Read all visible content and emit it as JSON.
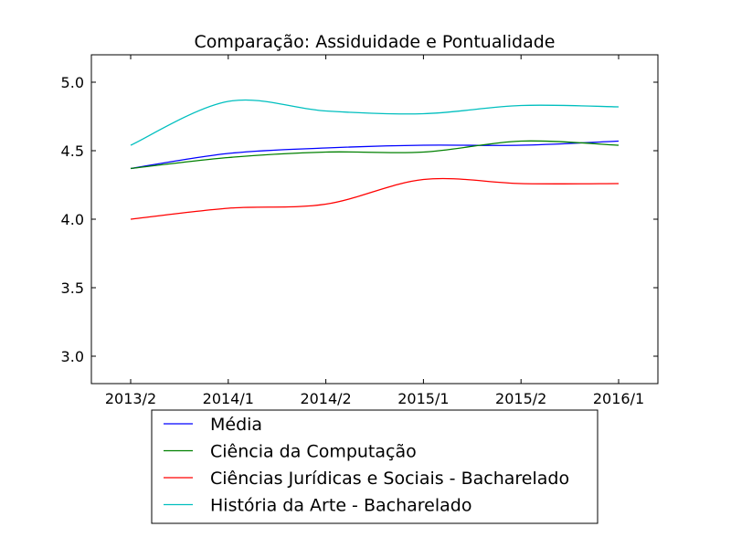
{
  "chart_data": {
    "type": "line",
    "title": "Comparação: Assiduidade e Pontualidade",
    "xlabel": "",
    "ylabel": "",
    "categories": [
      "2013/2",
      "2014/1",
      "2014/2",
      "2015/1",
      "2015/2",
      "2016/1"
    ],
    "ylim": [
      2.8,
      5.2
    ],
    "yticks": [
      3.0,
      3.5,
      4.0,
      4.5,
      5.0
    ],
    "ytick_labels": [
      "3.0",
      "3.5",
      "4.0",
      "4.5",
      "5.0"
    ],
    "grid": false,
    "legend_position": "below",
    "series": [
      {
        "name": "Média",
        "color": "#0000ff",
        "values": [
          4.37,
          4.48,
          4.52,
          4.54,
          4.54,
          4.57
        ]
      },
      {
        "name": "Ciência da Computação",
        "color": "#008000",
        "values": [
          4.37,
          4.45,
          4.49,
          4.49,
          4.57,
          4.54
        ]
      },
      {
        "name": "Ciências Jurídicas e Sociais - Bacharelado",
        "color": "#ff0000",
        "values": [
          4.0,
          4.08,
          4.11,
          4.29,
          4.26,
          4.26
        ]
      },
      {
        "name": "História da Arte - Bacharelado",
        "color": "#00bfbf",
        "values": [
          4.54,
          4.86,
          4.79,
          4.77,
          4.83,
          4.82
        ]
      }
    ]
  }
}
